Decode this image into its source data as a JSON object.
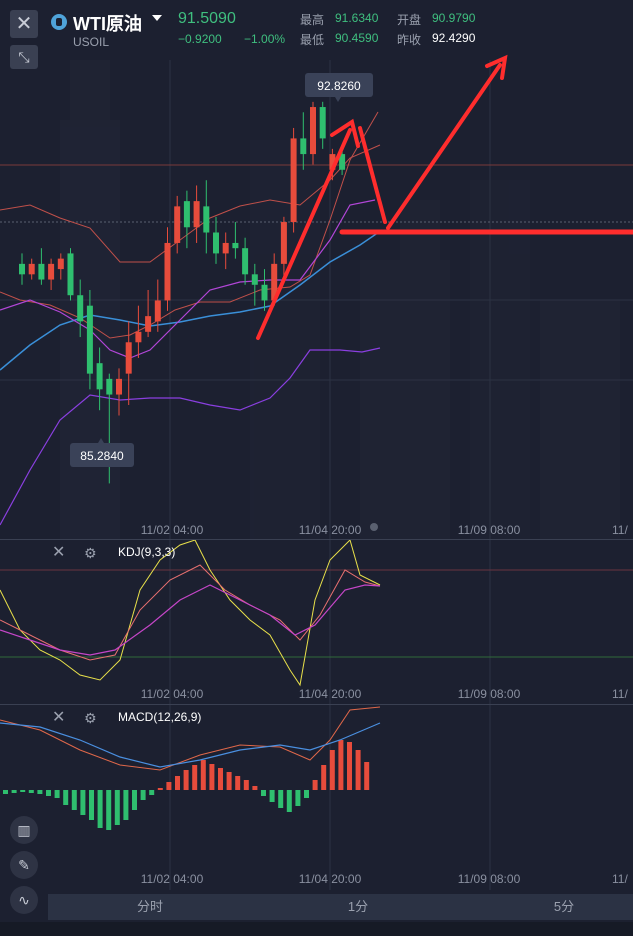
{
  "header": {
    "close_glyph": "✕",
    "shrink_glyph": "⤡",
    "symbol_name": "WTI原油",
    "symbol_code": "USOIL",
    "last_price": "91.5090",
    "change": "−0.9200",
    "change_pct": "−1.00%",
    "high_label": "最高",
    "high_value": "91.6340",
    "open_label": "开盘",
    "open_value": "90.9790",
    "low_label": "最低",
    "low_value": "90.4590",
    "prev_close_label": "昨收",
    "prev_close_value": "92.4290"
  },
  "main_chart": {
    "max_label": "92.8260",
    "min_label": "85.2840",
    "time_labels": [
      "11/02 04:00",
      "11/04 20:00",
      "11/09 08:00",
      "11/"
    ]
  },
  "kdj_pane": {
    "label": "KDJ(9,3,3)",
    "time_labels": [
      "11/02 04:00",
      "11/04 20:00",
      "11/09 08:00",
      "11/"
    ]
  },
  "macd_pane": {
    "label": "MACD(12,26,9)",
    "time_labels": [
      "11/02 04:00",
      "11/04 20:00",
      "11/09 08:00",
      "11/"
    ]
  },
  "side_tools": [
    "candles-icon",
    "pen-icon",
    "indicator-icon"
  ],
  "tabs": [
    "分时",
    "1分",
    "5分"
  ],
  "colors": {
    "up": "#e74c3c",
    "down": "#2fbf6f",
    "accent": "#ff2d2d"
  },
  "chart_data": {
    "type": "candlestick",
    "title": "WTI原油",
    "ylim": [
      84.8,
      93.6
    ],
    "x": [
      "11/02 04:00",
      "11/04 20:00",
      "11/09 08:00"
    ],
    "candles": [
      {
        "o": 89.7,
        "h": 89.9,
        "l": 89.3,
        "c": 89.5
      },
      {
        "o": 89.5,
        "h": 89.8,
        "l": 89.4,
        "c": 89.7
      },
      {
        "o": 89.7,
        "h": 90.0,
        "l": 89.3,
        "c": 89.4
      },
      {
        "o": 89.4,
        "h": 89.8,
        "l": 89.2,
        "c": 89.7
      },
      {
        "o": 89.6,
        "h": 89.9,
        "l": 89.4,
        "c": 89.8
      },
      {
        "o": 89.9,
        "h": 90.0,
        "l": 89.0,
        "c": 89.1
      },
      {
        "o": 89.1,
        "h": 89.4,
        "l": 88.3,
        "c": 88.6
      },
      {
        "o": 88.9,
        "h": 89.2,
        "l": 87.3,
        "c": 87.6
      },
      {
        "o": 87.8,
        "h": 88.1,
        "l": 86.9,
        "c": 87.3
      },
      {
        "o": 87.5,
        "h": 87.6,
        "l": 85.5,
        "c": 87.2
      },
      {
        "o": 87.2,
        "h": 87.7,
        "l": 86.8,
        "c": 87.5
      },
      {
        "o": 87.6,
        "h": 88.6,
        "l": 87.0,
        "c": 88.2
      },
      {
        "o": 88.2,
        "h": 88.9,
        "l": 87.9,
        "c": 88.4
      },
      {
        "o": 88.4,
        "h": 89.2,
        "l": 88.3,
        "c": 88.7
      },
      {
        "o": 88.6,
        "h": 89.4,
        "l": 88.4,
        "c": 89.0
      },
      {
        "o": 89.0,
        "h": 90.4,
        "l": 88.8,
        "c": 90.1
      },
      {
        "o": 90.1,
        "h": 91.0,
        "l": 89.9,
        "c": 90.8
      },
      {
        "o": 90.9,
        "h": 91.1,
        "l": 90.0,
        "c": 90.4
      },
      {
        "o": 90.4,
        "h": 91.2,
        "l": 90.1,
        "c": 90.9
      },
      {
        "o": 90.8,
        "h": 91.3,
        "l": 89.9,
        "c": 90.3
      },
      {
        "o": 90.3,
        "h": 90.6,
        "l": 89.7,
        "c": 89.9
      },
      {
        "o": 89.9,
        "h": 90.3,
        "l": 89.6,
        "c": 90.1
      },
      {
        "o": 90.1,
        "h": 90.5,
        "l": 89.8,
        "c": 90.0
      },
      {
        "o": 90.0,
        "h": 90.2,
        "l": 89.3,
        "c": 89.5
      },
      {
        "o": 89.5,
        "h": 89.7,
        "l": 88.9,
        "c": 89.3
      },
      {
        "o": 89.3,
        "h": 89.6,
        "l": 88.8,
        "c": 89.0
      },
      {
        "o": 89.0,
        "h": 89.9,
        "l": 88.9,
        "c": 89.7
      },
      {
        "o": 89.7,
        "h": 90.6,
        "l": 89.4,
        "c": 90.5
      },
      {
        "o": 90.5,
        "h": 92.3,
        "l": 90.3,
        "c": 92.1
      },
      {
        "o": 92.1,
        "h": 92.6,
        "l": 91.5,
        "c": 91.8
      },
      {
        "o": 91.8,
        "h": 92.8,
        "l": 91.6,
        "c": 92.7
      },
      {
        "o": 92.7,
        "h": 92.8,
        "l": 91.9,
        "c": 92.1
      },
      {
        "o": 91.5,
        "h": 91.9,
        "l": 91.3,
        "c": 91.8
      },
      {
        "o": 91.8,
        "h": 91.9,
        "l": 91.4,
        "c": 91.5
      }
    ]
  }
}
